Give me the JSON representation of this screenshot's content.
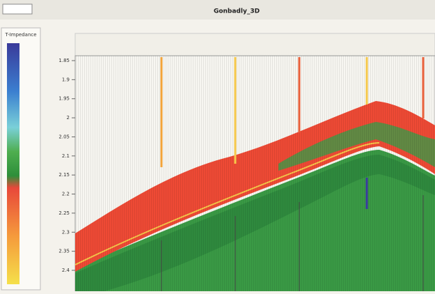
{
  "window": {
    "title": "Gonbadly_3D"
  },
  "colorbar": {
    "title": "T-Impedance"
  },
  "section": {
    "time_ticks": [
      "1.85",
      "1.9",
      "1.95",
      "2",
      "2.05",
      "2.1",
      "2.15",
      "2.2",
      "2.25",
      "2.3",
      "2.35",
      "2.4"
    ]
  }
}
